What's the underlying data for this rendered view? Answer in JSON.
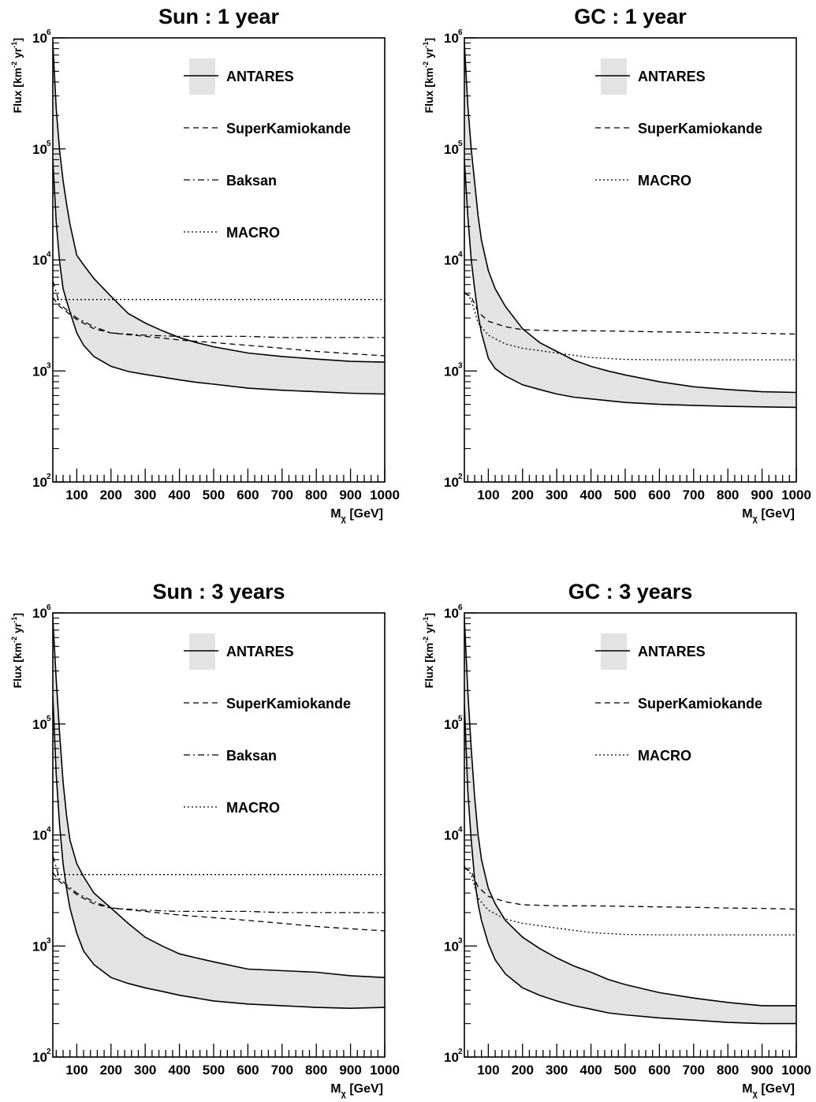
{
  "axis_labels": {
    "x_main": "M",
    "x_sub": "χ",
    "x_unit": " [GeV]",
    "y_pre": "Flux [km",
    "y_exp1": "-2",
    "y_mid": " yr",
    "y_exp2": "-1",
    "y_post": "]"
  },
  "chart_data": [
    {
      "type": "area",
      "title": "Sun : 1 year",
      "xlim": [
        30,
        1000
      ],
      "ylim": [
        100,
        1000000
      ],
      "yscale": "log",
      "xticks": [
        100,
        200,
        300,
        400,
        500,
        600,
        700,
        800,
        900,
        1000
      ],
      "yticks": [
        100,
        1000,
        10000,
        100000,
        1000000
      ],
      "band": {
        "name": "ANTARES",
        "x": [
          30,
          40,
          50,
          60,
          70,
          80,
          100,
          120,
          150,
          200,
          250,
          300,
          350,
          400,
          450,
          500,
          600,
          700,
          800,
          900,
          1000
        ],
        "upper": [
          900000,
          230000,
          95000,
          52000,
          32000,
          21000,
          11000,
          9000,
          6800,
          4700,
          3300,
          2700,
          2300,
          2000,
          1800,
          1650,
          1450,
          1350,
          1280,
          1220,
          1200
        ],
        "lower": [
          80000,
          22000,
          9500,
          5500,
          4300,
          3400,
          2200,
          1700,
          1350,
          1100,
          990,
          930,
          880,
          830,
          790,
          760,
          700,
          670,
          650,
          630,
          620
        ]
      },
      "series": [
        {
          "name": "SuperKamiokande",
          "style": "dashed",
          "x": [
            30,
            50,
            100,
            150,
            200,
            300,
            400,
            500,
            600,
            700,
            800,
            900,
            1000
          ],
          "values": [
            4600,
            3800,
            2900,
            2400,
            2200,
            2050,
            1900,
            1800,
            1700,
            1600,
            1500,
            1430,
            1370
          ]
        },
        {
          "name": "Baksan",
          "style": "dashdot",
          "x": [
            30,
            50,
            100,
            150,
            200,
            300,
            400,
            500,
            600,
            700,
            800,
            900,
            1000
          ],
          "values": [
            6500,
            4000,
            3000,
            2500,
            2200,
            2100,
            2050,
            2050,
            2050,
            2000,
            2000,
            2000,
            2000
          ]
        },
        {
          "name": "MACRO",
          "style": "dotted",
          "x": [
            30,
            60,
            100,
            200,
            400,
            600,
            800,
            1000
          ],
          "values": [
            4400,
            4400,
            4400,
            4400,
            4400,
            4400,
            4400,
            4400
          ]
        }
      ]
    },
    {
      "type": "area",
      "title": "GC : 1 year",
      "xlim": [
        30,
        1000
      ],
      "ylim": [
        100,
        1000000
      ],
      "yscale": "log",
      "xticks": [
        100,
        200,
        300,
        400,
        500,
        600,
        700,
        800,
        900,
        1000
      ],
      "yticks": [
        100,
        1000,
        10000,
        100000,
        1000000
      ],
      "band": {
        "name": "ANTARES",
        "x": [
          30,
          40,
          50,
          60,
          70,
          80,
          100,
          120,
          150,
          200,
          250,
          300,
          350,
          400,
          450,
          500,
          600,
          700,
          800,
          900,
          1000
        ],
        "upper": [
          900000,
          250000,
          100000,
          50000,
          25000,
          15000,
          8000,
          5500,
          3800,
          2400,
          1800,
          1500,
          1250,
          1100,
          1000,
          920,
          800,
          720,
          680,
          650,
          640
        ],
        "lower": [
          80000,
          25000,
          10000,
          5500,
          3200,
          2200,
          1300,
          1050,
          900,
          750,
          680,
          620,
          580,
          560,
          540,
          520,
          500,
          490,
          480,
          475,
          470
        ]
      },
      "series": [
        {
          "name": "SuperKamiokande",
          "style": "dashed",
          "x": [
            30,
            50,
            70,
            100,
            150,
            200,
            300,
            400,
            500,
            600,
            700,
            800,
            900,
            1000
          ],
          "values": [
            5000,
            4700,
            3400,
            2800,
            2500,
            2350,
            2300,
            2300,
            2280,
            2250,
            2230,
            2200,
            2180,
            2150
          ]
        },
        {
          "name": "MACRO",
          "style": "dotted",
          "x": [
            30,
            50,
            70,
            100,
            150,
            200,
            300,
            400,
            500,
            600,
            700,
            800,
            900,
            1000
          ],
          "values": [
            5200,
            4400,
            2700,
            2100,
            1750,
            1600,
            1450,
            1320,
            1270,
            1260,
            1260,
            1260,
            1260,
            1260
          ]
        }
      ]
    },
    {
      "type": "area",
      "title": "Sun : 3 years",
      "xlim": [
        30,
        1000
      ],
      "ylim": [
        100,
        1000000
      ],
      "yscale": "log",
      "xticks": [
        100,
        200,
        300,
        400,
        500,
        600,
        700,
        800,
        900,
        1000
      ],
      "yticks": [
        100,
        1000,
        10000,
        100000,
        1000000
      ],
      "band": {
        "name": "ANTARES",
        "x": [
          30,
          40,
          50,
          60,
          70,
          80,
          100,
          120,
          150,
          200,
          250,
          300,
          350,
          400,
          450,
          500,
          600,
          700,
          800,
          900,
          1000
        ],
        "upper": [
          900000,
          250000,
          80000,
          30000,
          15000,
          9000,
          5500,
          4200,
          3000,
          2200,
          1600,
          1200,
          1000,
          850,
          780,
          720,
          620,
          600,
          580,
          540,
          520
        ],
        "lower": [
          180000,
          35000,
          12000,
          5500,
          3300,
          2200,
          1300,
          900,
          680,
          520,
          460,
          420,
          390,
          360,
          340,
          320,
          300,
          290,
          280,
          275,
          280
        ]
      },
      "series": [
        {
          "name": "SuperKamiokande",
          "style": "dashed",
          "x": [
            30,
            50,
            100,
            150,
            200,
            300,
            400,
            500,
            600,
            700,
            800,
            900,
            1000
          ],
          "values": [
            4600,
            3800,
            2900,
            2400,
            2200,
            2050,
            1900,
            1800,
            1700,
            1600,
            1500,
            1430,
            1370
          ]
        },
        {
          "name": "Baksan",
          "style": "dashdot",
          "x": [
            30,
            50,
            100,
            150,
            200,
            300,
            400,
            500,
            600,
            700,
            800,
            900,
            1000
          ],
          "values": [
            6500,
            4000,
            3000,
            2500,
            2200,
            2100,
            2050,
            2050,
            2050,
            2000,
            2000,
            2000,
            2000
          ]
        },
        {
          "name": "MACRO",
          "style": "dotted",
          "x": [
            30,
            60,
            100,
            200,
            400,
            600,
            800,
            1000
          ],
          "values": [
            4400,
            4400,
            4400,
            4400,
            4400,
            4400,
            4400,
            4400
          ]
        }
      ]
    },
    {
      "type": "area",
      "title": "GC : 3 years",
      "xlim": [
        30,
        1000
      ],
      "ylim": [
        100,
        1000000
      ],
      "yscale": "log",
      "xticks": [
        100,
        200,
        300,
        400,
        500,
        600,
        700,
        800,
        900,
        1000
      ],
      "yticks": [
        100,
        1000,
        10000,
        100000,
        1000000
      ],
      "band": {
        "name": "ANTARES",
        "x": [
          30,
          40,
          50,
          60,
          70,
          80,
          100,
          120,
          150,
          200,
          250,
          300,
          350,
          400,
          450,
          500,
          600,
          700,
          800,
          900,
          1000
        ],
        "upper": [
          900000,
          200000,
          60000,
          22000,
          10000,
          6000,
          3300,
          2400,
          1700,
          1200,
          950,
          780,
          660,
          580,
          500,
          450,
          380,
          340,
          310,
          290,
          290
        ],
        "lower": [
          150000,
          25000,
          9000,
          4000,
          2400,
          1700,
          1050,
          750,
          560,
          420,
          360,
          320,
          290,
          270,
          250,
          240,
          225,
          215,
          205,
          200,
          200
        ]
      },
      "series": [
        {
          "name": "SuperKamiokande",
          "style": "dashed",
          "x": [
            30,
            50,
            70,
            100,
            150,
            200,
            300,
            400,
            500,
            600,
            700,
            800,
            900,
            1000
          ],
          "values": [
            5000,
            4700,
            3400,
            2800,
            2500,
            2350,
            2300,
            2300,
            2280,
            2250,
            2230,
            2200,
            2180,
            2150
          ]
        },
        {
          "name": "MACRO",
          "style": "dotted",
          "x": [
            30,
            50,
            70,
            100,
            150,
            200,
            300,
            400,
            500,
            600,
            700,
            800,
            900,
            1000
          ],
          "values": [
            5200,
            4400,
            2700,
            2100,
            1750,
            1600,
            1450,
            1320,
            1270,
            1260,
            1260,
            1260,
            1260,
            1260
          ]
        }
      ]
    }
  ]
}
